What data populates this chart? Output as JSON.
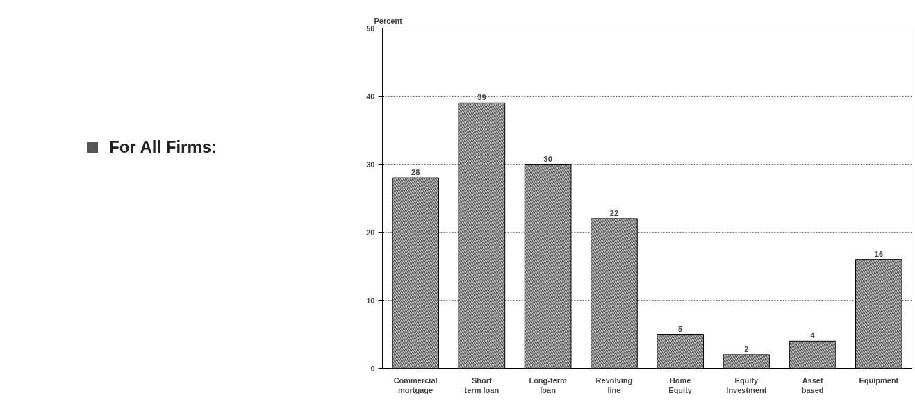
{
  "chart_data": {
    "type": "bar",
    "title": "For All Firms:",
    "ylabel": "Percent",
    "categories": [
      "Commercial mortgage",
      "Short term loan",
      "Long-term loan",
      "Revolving line",
      "Home Equity",
      "Equity Investment",
      "Asset based",
      "Equipment"
    ],
    "values": [
      28,
      39,
      30,
      22,
      5,
      2,
      4,
      16
    ],
    "color": "#b4b4b4",
    "ylim": [
      0,
      50
    ],
    "yticks": [
      0,
      10,
      20,
      30,
      40,
      50
    ],
    "grid": "y",
    "data_labels": true
  }
}
